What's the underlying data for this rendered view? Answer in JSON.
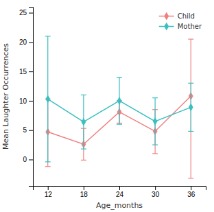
{
  "chart_data": {
    "type": "line",
    "x": [
      12,
      18,
      24,
      30,
      36
    ],
    "series": [
      {
        "name": "Child",
        "color": "#f08080",
        "values": [
          4.7,
          2.6,
          8.1,
          4.8,
          10.8
        ],
        "upper": [
          10.3,
          5.3,
          10.0,
          8.5,
          20.5
        ],
        "lower": [
          -1.2,
          -0.1,
          6.2,
          1.0,
          -3.2
        ]
      },
      {
        "name": "Mother",
        "color": "#3bbfbf",
        "values": [
          10.3,
          6.4,
          10.0,
          6.5,
          8.9
        ],
        "upper": [
          21.0,
          11.0,
          14.0,
          10.5,
          13.0
        ],
        "lower": [
          -0.4,
          1.8,
          6.0,
          2.5,
          4.8
        ]
      }
    ],
    "xlabel": "Age_months",
    "ylabel": "Mean Laughter Occurrences",
    "xlim": [
      9.5,
      38.5
    ],
    "xticks": [
      12,
      18,
      24,
      30,
      36
    ],
    "ylim": [
      -4.5,
      26
    ],
    "yticks": [
      0,
      5,
      10,
      15,
      20,
      25
    ],
    "marker": "diamond",
    "grid": false,
    "legend": "upper right"
  }
}
